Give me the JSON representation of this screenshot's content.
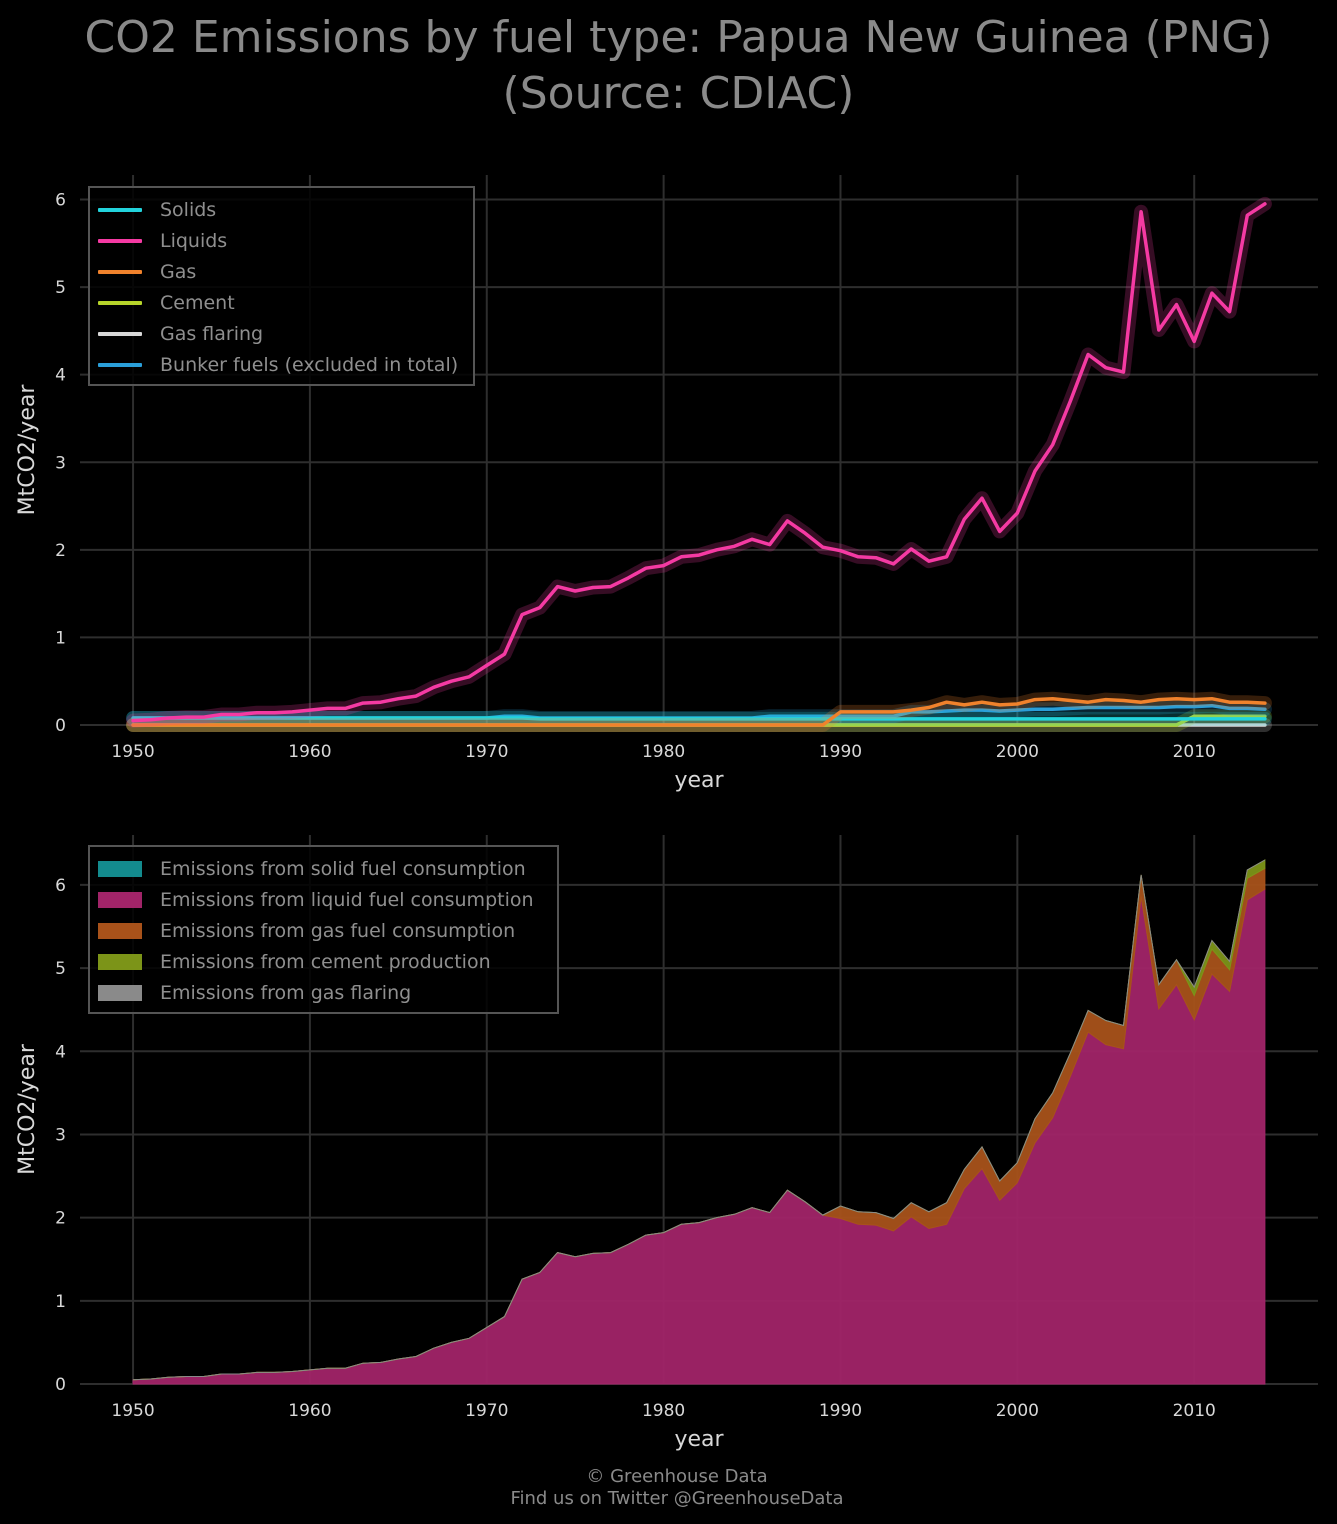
{
  "title": {
    "line1": "CO2 Emissions by fuel type: Papua New Guinea (PNG)",
    "line2": "(Source: CDIAC)"
  },
  "credit": {
    "line1": "© Greenhouse Data",
    "line2": "Find us on Twitter @GreenhouseData"
  },
  "colors": {
    "background": "#000000",
    "solids": "#22d3dc",
    "liquids": "#f53aa3",
    "gas": "#f0822c",
    "cement": "#b6d42a",
    "flaring": "#d8d8d8",
    "bunker": "#2a9fd9",
    "area_solid": "#138b8e",
    "area_liquid": "#a12468",
    "area_gas": "#a8521a",
    "area_cement": "#7c9418",
    "area_flaring": "#8a8a8a"
  },
  "chart_data": [
    {
      "type": "line",
      "xlabel": "year",
      "ylabel": "MtCO2/year",
      "xlim": [
        1947,
        2017
      ],
      "ylim": [
        0,
        6.28
      ],
      "xticks": [
        1950,
        1960,
        1970,
        1980,
        1990,
        2000,
        2010
      ],
      "yticks": [
        0,
        1,
        2,
        3,
        4,
        5,
        6
      ],
      "grid": true,
      "legend_position": "top-left",
      "x": [
        1950,
        1951,
        1952,
        1953,
        1954,
        1955,
        1956,
        1957,
        1958,
        1959,
        1960,
        1961,
        1962,
        1963,
        1964,
        1965,
        1966,
        1967,
        1968,
        1969,
        1970,
        1971,
        1972,
        1973,
        1974,
        1975,
        1976,
        1977,
        1978,
        1979,
        1980,
        1981,
        1982,
        1983,
        1984,
        1985,
        1986,
        1987,
        1988,
        1989,
        1990,
        1991,
        1992,
        1993,
        1994,
        1995,
        1996,
        1997,
        1998,
        1999,
        2000,
        2001,
        2002,
        2003,
        2004,
        2005,
        2006,
        2007,
        2008,
        2009,
        2010,
        2011,
        2012,
        2013,
        2014
      ],
      "series": [
        {
          "name": "Solids",
          "color_key": "solids",
          "values": [
            0.08,
            0.08,
            0.08,
            0.08,
            0.08,
            0.08,
            0.08,
            0.08,
            0.08,
            0.08,
            0.08,
            0.08,
            0.08,
            0.08,
            0.08,
            0.08,
            0.08,
            0.08,
            0.08,
            0.08,
            0.08,
            0.08,
            0.08,
            0.07,
            0.07,
            0.07,
            0.07,
            0.07,
            0.07,
            0.07,
            0.07,
            0.07,
            0.07,
            0.07,
            0.07,
            0.07,
            0.07,
            0.07,
            0.07,
            0.07,
            0.07,
            0.07,
            0.07,
            0.07,
            0.07,
            0.07,
            0.07,
            0.07,
            0.07,
            0.07,
            0.07,
            0.07,
            0.07,
            0.07,
            0.07,
            0.07,
            0.07,
            0.07,
            0.07,
            0.07,
            0.07,
            0.07,
            0.07,
            0.07,
            0.07
          ]
        },
        {
          "name": "Liquids",
          "color_key": "liquids",
          "values": [
            0.05,
            0.06,
            0.08,
            0.09,
            0.09,
            0.12,
            0.12,
            0.14,
            0.14,
            0.15,
            0.17,
            0.19,
            0.19,
            0.25,
            0.26,
            0.3,
            0.33,
            0.43,
            0.5,
            0.55,
            0.68,
            0.81,
            1.26,
            1.34,
            1.58,
            1.53,
            1.57,
            1.58,
            1.68,
            1.79,
            1.82,
            1.92,
            1.94,
            2.0,
            2.04,
            2.12,
            2.06,
            2.33,
            2.19,
            2.03,
            1.99,
            1.92,
            1.91,
            1.84,
            2.01,
            1.87,
            1.92,
            2.35,
            2.59,
            2.21,
            2.42,
            2.9,
            3.2,
            3.7,
            4.23,
            4.08,
            4.03,
            5.86,
            4.51,
            4.8,
            4.38,
            4.93,
            4.72,
            5.82,
            5.95
          ]
        },
        {
          "name": "Gas",
          "color_key": "gas",
          "values": [
            0,
            0,
            0,
            0,
            0,
            0,
            0,
            0,
            0,
            0,
            0,
            0,
            0,
            0,
            0,
            0,
            0,
            0,
            0,
            0,
            0,
            0,
            0,
            0,
            0,
            0,
            0,
            0,
            0,
            0,
            0,
            0,
            0,
            0,
            0,
            0,
            0,
            0,
            0,
            0,
            0.15,
            0.15,
            0.15,
            0.15,
            0.17,
            0.2,
            0.26,
            0.23,
            0.26,
            0.23,
            0.24,
            0.29,
            0.3,
            0.28,
            0.26,
            0.29,
            0.28,
            0.26,
            0.29,
            0.3,
            0.29,
            0.3,
            0.26,
            0.26,
            0.25
          ]
        },
        {
          "name": "Cement",
          "color_key": "cement",
          "values": [
            0,
            0,
            0,
            0,
            0,
            0,
            0,
            0,
            0,
            0,
            0,
            0,
            0,
            0,
            0,
            0,
            0,
            0,
            0,
            0,
            0,
            0,
            0,
            0,
            0,
            0,
            0,
            0,
            0,
            0,
            0,
            0,
            0,
            0,
            0,
            0,
            0,
            0,
            0,
            0,
            0,
            0,
            0,
            0,
            0,
            0,
            0,
            0,
            0,
            0,
            0,
            0,
            0,
            0,
            0,
            0,
            0,
            0,
            0,
            0,
            0.1,
            0.1,
            0.1,
            0.1,
            0.1
          ]
        },
        {
          "name": "Gas flaring",
          "color_key": "flaring",
          "values": [
            0,
            0,
            0,
            0,
            0,
            0,
            0,
            0,
            0,
            0,
            0,
            0,
            0,
            0,
            0,
            0,
            0,
            0,
            0,
            0,
            0,
            0,
            0,
            0,
            0,
            0,
            0,
            0,
            0,
            0,
            0,
            0,
            0,
            0,
            0,
            0,
            0,
            0,
            0,
            0,
            0,
            0,
            0,
            0,
            0,
            0,
            0,
            0,
            0,
            0,
            0,
            0,
            0,
            0,
            0,
            0,
            0,
            0,
            0,
            0,
            0,
            0,
            0,
            0,
            0
          ]
        },
        {
          "name": "Bunker fuels (excluded in total)",
          "color_key": "bunker",
          "values": [
            0.08,
            0.08,
            0.08,
            0.08,
            0.08,
            0.08,
            0.08,
            0.08,
            0.08,
            0.08,
            0.08,
            0.08,
            0.08,
            0.08,
            0.08,
            0.08,
            0.08,
            0.08,
            0.08,
            0.08,
            0.08,
            0.1,
            0.1,
            0.08,
            0.08,
            0.08,
            0.08,
            0.08,
            0.08,
            0.08,
            0.08,
            0.08,
            0.08,
            0.08,
            0.08,
            0.08,
            0.1,
            0.1,
            0.1,
            0.1,
            0.1,
            0.1,
            0.1,
            0.1,
            0.15,
            0.15,
            0.16,
            0.17,
            0.17,
            0.16,
            0.17,
            0.18,
            0.18,
            0.19,
            0.2,
            0.2,
            0.2,
            0.2,
            0.2,
            0.21,
            0.21,
            0.22,
            0.19,
            0.19,
            0.18
          ]
        }
      ]
    },
    {
      "type": "area",
      "stacked": true,
      "xlabel": "year",
      "ylabel": "MtCO2/year",
      "xlim": [
        1947,
        2017
      ],
      "ylim": [
        0,
        6.6
      ],
      "xticks": [
        1950,
        1960,
        1970,
        1980,
        1990,
        2000,
        2010
      ],
      "yticks": [
        0,
        1,
        2,
        3,
        4,
        5,
        6
      ],
      "grid": true,
      "legend_position": "top-left",
      "legend": [
        {
          "name": "Emissions from solid fuel consumption",
          "color_key": "area_solid"
        },
        {
          "name": "Emissions from liquid fuel consumption",
          "color_key": "area_liquid"
        },
        {
          "name": "Emissions from gas fuel consumption",
          "color_key": "area_gas"
        },
        {
          "name": "Emissions from cement production",
          "color_key": "area_cement"
        },
        {
          "name": "Emissions from gas flaring",
          "color_key": "area_flaring"
        }
      ],
      "stack_order": [
        "Liquids",
        "Gas",
        "Cement",
        "Gas flaring"
      ]
    }
  ]
}
